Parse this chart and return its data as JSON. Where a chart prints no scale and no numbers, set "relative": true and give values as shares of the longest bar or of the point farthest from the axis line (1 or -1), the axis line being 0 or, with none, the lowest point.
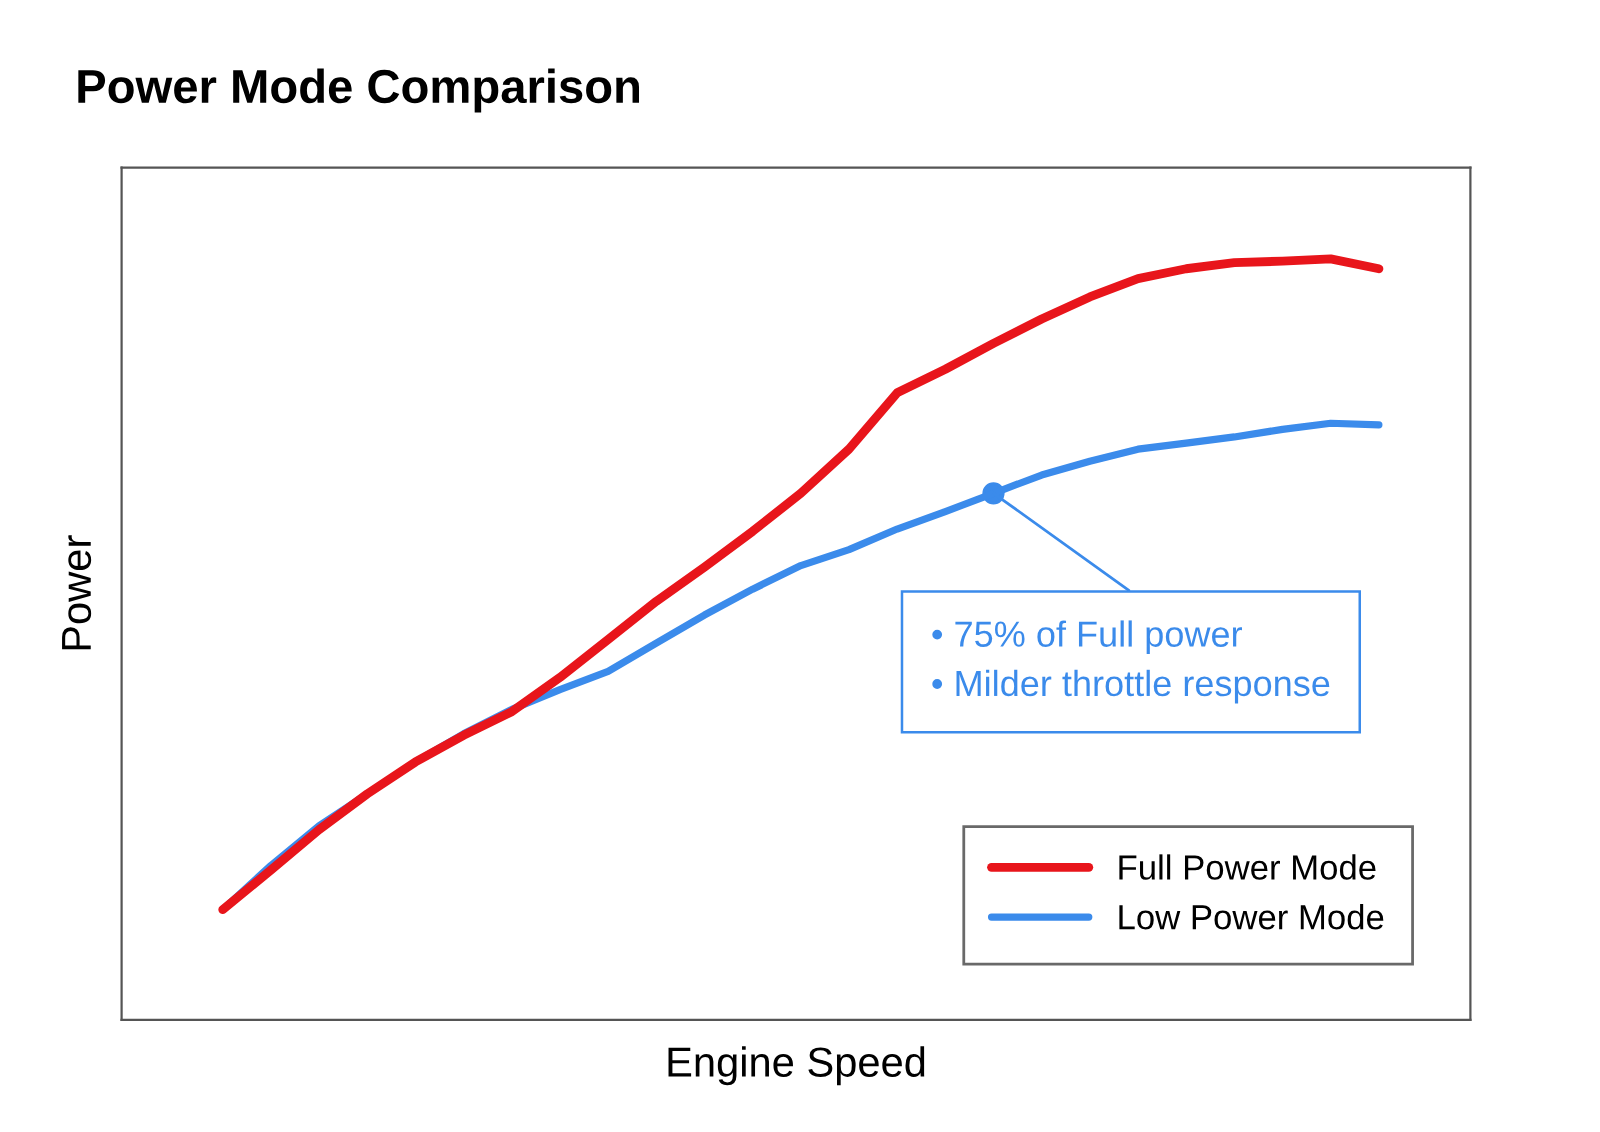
{
  "chart_data": {
    "type": "line",
    "title": "Power Mode Comparison",
    "xlabel": "Engine Speed",
    "ylabel": "Power",
    "relative": true,
    "grid": false,
    "legend": "bottom right",
    "marker": "none",
    "line_style": "solid",
    "categories": [
      null,
      null,
      null,
      null,
      null,
      null,
      null,
      null,
      null,
      null,
      null,
      null,
      null,
      null,
      null,
      null,
      null,
      null,
      null,
      null,
      null,
      null,
      null,
      null,
      null
    ],
    "series": [
      {
        "name": "Full Power Mode",
        "color": "#e8151b",
        "values": [
          0.145,
          0.197,
          0.25,
          0.297,
          0.339,
          0.374,
          0.405,
          0.45,
          0.5,
          0.55,
          0.595,
          0.642,
          0.692,
          0.75,
          0.824,
          0.855,
          0.889,
          0.921,
          0.95,
          0.974,
          0.987,
          0.995,
          0.997,
          1,
          0.987
        ]
      },
      {
        "name": "Low Power Mode",
        "color": "#3b8beb",
        "values": [
          0.145,
          0.203,
          0.255,
          0.297,
          0.339,
          0.376,
          0.408,
          0.434,
          0.458,
          0.495,
          0.532,
          0.566,
          0.597,
          0.618,
          0.645,
          0.668,
          0.692,
          0.716,
          0.734,
          0.75,
          0.758,
          0.766,
          0.776,
          0.784,
          0.782
        ]
      }
    ],
    "annotations": [
      "• 75% of Full power\n• Milder throttle response"
    ]
  }
}
